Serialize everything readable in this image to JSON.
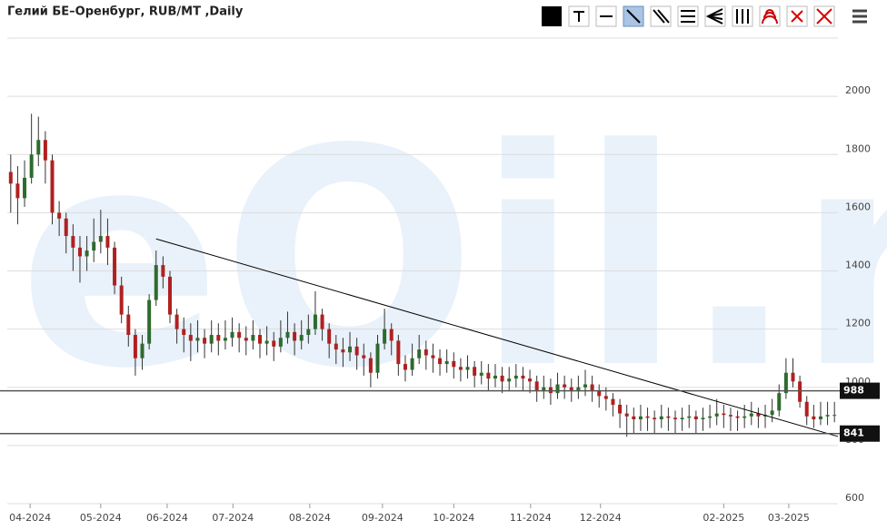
{
  "chart_data": {
    "type": "candlestick",
    "title": "Гелий БЕ–Оренбург, RUB/MT ,Daily",
    "watermark": "eOil.ru",
    "up_color": "#2e6b2e",
    "down_color": "#b02020",
    "wick_color": "#333333",
    "grid": true,
    "ylim": [
      600,
      2200
    ],
    "yticks": [
      600,
      800,
      1000,
      1200,
      1400,
      1600,
      1800,
      2000
    ],
    "xlim": [
      -0.5,
      119.5
    ],
    "xticks": [
      {
        "value": 2.8,
        "label": "04-2024"
      },
      {
        "value": 13.0,
        "label": "05-2024"
      },
      {
        "value": 22.6,
        "label": "06-2024"
      },
      {
        "value": 32.1,
        "label": "07-2024"
      },
      {
        "value": 43.2,
        "label": "08-2024"
      },
      {
        "value": 53.7,
        "label": "09-2024"
      },
      {
        "value": 64.0,
        "label": "10-2024"
      },
      {
        "value": 75.1,
        "label": "11-2024"
      },
      {
        "value": 85.2,
        "label": "12-2024"
      },
      {
        "value": 103.0,
        "label": "02-2025"
      },
      {
        "value": 112.4,
        "label": "03-2025"
      }
    ],
    "hlines": [
      {
        "value": 988,
        "label": "988"
      },
      {
        "value": 841,
        "label": "841"
      }
    ],
    "trendline": {
      "x": [
        21,
        119.5
      ],
      "y": [
        1510,
        831
      ]
    },
    "ohlc": [
      [
        1740,
        1800,
        1600,
        1700
      ],
      [
        1700,
        1760,
        1560,
        1650
      ],
      [
        1650,
        1780,
        1620,
        1720
      ],
      [
        1720,
        1940,
        1700,
        1800
      ],
      [
        1800,
        1930,
        1760,
        1850
      ],
      [
        1850,
        1880,
        1700,
        1780
      ],
      [
        1780,
        1800,
        1560,
        1600
      ],
      [
        1600,
        1640,
        1520,
        1580
      ],
      [
        1580,
        1600,
        1460,
        1520
      ],
      [
        1520,
        1560,
        1400,
        1480
      ],
      [
        1480,
        1520,
        1360,
        1450
      ],
      [
        1450,
        1520,
        1400,
        1470
      ],
      [
        1470,
        1580,
        1430,
        1500
      ],
      [
        1500,
        1610,
        1460,
        1520
      ],
      [
        1520,
        1580,
        1420,
        1480
      ],
      [
        1480,
        1500,
        1320,
        1350
      ],
      [
        1350,
        1380,
        1220,
        1250
      ],
      [
        1250,
        1280,
        1140,
        1180
      ],
      [
        1180,
        1200,
        1040,
        1100
      ],
      [
        1100,
        1180,
        1060,
        1150
      ],
      [
        1150,
        1320,
        1130,
        1300
      ],
      [
        1300,
        1470,
        1280,
        1420
      ],
      [
        1420,
        1450,
        1340,
        1380
      ],
      [
        1380,
        1400,
        1220,
        1250
      ],
      [
        1250,
        1270,
        1150,
        1200
      ],
      [
        1200,
        1240,
        1120,
        1180
      ],
      [
        1180,
        1220,
        1090,
        1160
      ],
      [
        1160,
        1230,
        1120,
        1170
      ],
      [
        1170,
        1200,
        1100,
        1150
      ],
      [
        1150,
        1230,
        1120,
        1180
      ],
      [
        1180,
        1220,
        1110,
        1160
      ],
      [
        1160,
        1230,
        1130,
        1170
      ],
      [
        1170,
        1240,
        1140,
        1190
      ],
      [
        1190,
        1220,
        1120,
        1170
      ],
      [
        1170,
        1210,
        1110,
        1160
      ],
      [
        1160,
        1230,
        1130,
        1180
      ],
      [
        1180,
        1200,
        1100,
        1150
      ],
      [
        1150,
        1210,
        1110,
        1160
      ],
      [
        1160,
        1190,
        1090,
        1140
      ],
      [
        1140,
        1230,
        1120,
        1170
      ],
      [
        1170,
        1260,
        1150,
        1190
      ],
      [
        1190,
        1220,
        1110,
        1160
      ],
      [
        1160,
        1230,
        1130,
        1180
      ],
      [
        1180,
        1250,
        1150,
        1200
      ],
      [
        1200,
        1330,
        1180,
        1250
      ],
      [
        1250,
        1270,
        1160,
        1200
      ],
      [
        1200,
        1220,
        1100,
        1150
      ],
      [
        1150,
        1180,
        1080,
        1130
      ],
      [
        1130,
        1170,
        1070,
        1120
      ],
      [
        1120,
        1190,
        1090,
        1140
      ],
      [
        1140,
        1170,
        1060,
        1110
      ],
      [
        1110,
        1150,
        1040,
        1100
      ],
      [
        1100,
        1120,
        1000,
        1050
      ],
      [
        1050,
        1180,
        1030,
        1150
      ],
      [
        1150,
        1270,
        1130,
        1200
      ],
      [
        1200,
        1220,
        1110,
        1160
      ],
      [
        1160,
        1180,
        1040,
        1080
      ],
      [
        1080,
        1110,
        1020,
        1060
      ],
      [
        1060,
        1150,
        1040,
        1100
      ],
      [
        1100,
        1180,
        1080,
        1130
      ],
      [
        1130,
        1160,
        1060,
        1110
      ],
      [
        1110,
        1150,
        1050,
        1100
      ],
      [
        1100,
        1130,
        1040,
        1080
      ],
      [
        1080,
        1130,
        1050,
        1090
      ],
      [
        1090,
        1120,
        1030,
        1070
      ],
      [
        1070,
        1100,
        1020,
        1060
      ],
      [
        1060,
        1110,
        1030,
        1070
      ],
      [
        1070,
        1090,
        1000,
        1040
      ],
      [
        1040,
        1090,
        1010,
        1050
      ],
      [
        1050,
        1080,
        990,
        1030
      ],
      [
        1030,
        1080,
        1000,
        1040
      ],
      [
        1040,
        1070,
        980,
        1020
      ],
      [
        1020,
        1070,
        990,
        1030
      ],
      [
        1030,
        1080,
        1000,
        1040
      ],
      [
        1040,
        1070,
        990,
        1030
      ],
      [
        1030,
        1060,
        980,
        1020
      ],
      [
        1020,
        1040,
        950,
        990
      ],
      [
        990,
        1040,
        960,
        1000
      ],
      [
        1000,
        1030,
        940,
        980
      ],
      [
        980,
        1050,
        960,
        1010
      ],
      [
        1010,
        1040,
        960,
        1000
      ],
      [
        1000,
        1030,
        950,
        990
      ],
      [
        990,
        1040,
        960,
        1000
      ],
      [
        1000,
        1060,
        970,
        1010
      ],
      [
        1010,
        1040,
        950,
        990
      ],
      [
        990,
        1010,
        930,
        970
      ],
      [
        970,
        1000,
        920,
        960
      ],
      [
        960,
        980,
        900,
        940
      ],
      [
        940,
        960,
        860,
        910
      ],
      [
        910,
        940,
        830,
        900
      ],
      [
        900,
        930,
        840,
        890
      ],
      [
        890,
        940,
        850,
        900
      ],
      [
        900,
        930,
        850,
        895
      ],
      [
        895,
        920,
        840,
        890
      ],
      [
        890,
        940,
        860,
        900
      ],
      [
        900,
        930,
        850,
        895
      ],
      [
        895,
        920,
        840,
        890
      ],
      [
        890,
        930,
        850,
        895
      ],
      [
        895,
        940,
        860,
        900
      ],
      [
        900,
        920,
        840,
        890
      ],
      [
        890,
        930,
        850,
        895
      ],
      [
        895,
        940,
        860,
        900
      ],
      [
        900,
        960,
        870,
        910
      ],
      [
        910,
        940,
        860,
        905
      ],
      [
        905,
        930,
        850,
        900
      ],
      [
        900,
        920,
        850,
        895
      ],
      [
        895,
        940,
        860,
        900
      ],
      [
        900,
        950,
        870,
        910
      ],
      [
        910,
        930,
        860,
        900
      ],
      [
        900,
        940,
        860,
        905
      ],
      [
        905,
        960,
        880,
        920
      ],
      [
        920,
        1010,
        900,
        980
      ],
      [
        980,
        1100,
        960,
        1050
      ],
      [
        1050,
        1100,
        1000,
        1020
      ],
      [
        1020,
        1040,
        930,
        950
      ],
      [
        950,
        970,
        870,
        900
      ],
      [
        900,
        940,
        860,
        890
      ],
      [
        890,
        950,
        870,
        900
      ],
      [
        900,
        950,
        870,
        905
      ],
      [
        905,
        950,
        880,
        905
      ]
    ]
  }
}
